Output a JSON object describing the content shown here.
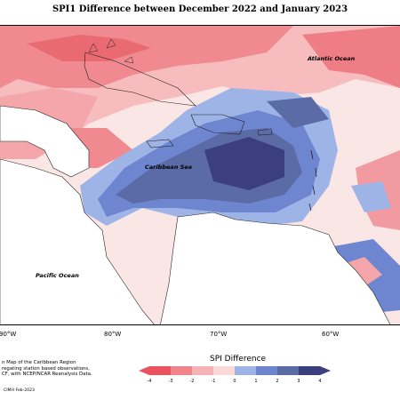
{
  "title": "SPI1 Difference between December 2022 and January 2023",
  "labels": {
    "atlantic": "Atlantic Ocean",
    "caribbean": "Caribbean Sea",
    "pacific": "Pacific Ocean"
  },
  "longitudes": [
    "90°W",
    "80°W",
    "70°W",
    "60°W"
  ],
  "footnote": [
    "n Map of the Caribbean Region",
    "regating station based observations,",
    "CF, with NCEP/NCAR Reanalysis Data."
  ],
  "credit": "CIMH Feb-2023",
  "legend": {
    "title": "SPI Difference",
    "ticks": [
      "-4",
      "-3",
      "-2",
      "-1",
      "0",
      "1",
      "2",
      "3",
      "4"
    ],
    "colors": [
      "#e8535f",
      "#f0858c",
      "#f5b3b5",
      "#fad9d8",
      "#d9ecf0",
      "#9fb4e6",
      "#6e86cf",
      "#5b6ba5",
      "#3c3f7d"
    ]
  }
}
